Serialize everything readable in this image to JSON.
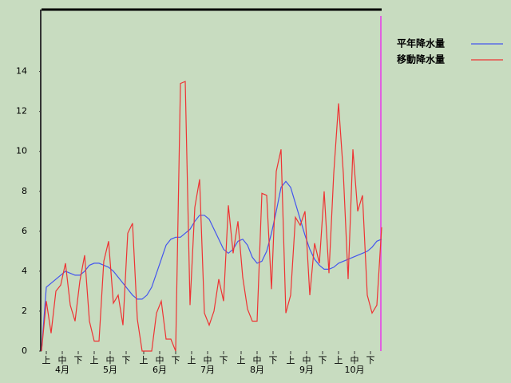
{
  "chart_data": {
    "type": "line",
    "xlim": [
      0,
      213
    ],
    "ylim": [
      0,
      17.1
    ],
    "yticks": [
      0,
      2,
      4,
      6,
      8,
      10,
      12,
      14
    ],
    "xticks": [
      {
        "value": 3,
        "label": "上"
      },
      {
        "value": 13,
        "label": "中"
      },
      {
        "value": 23,
        "label": "下"
      },
      {
        "value": 33,
        "label": "上"
      },
      {
        "value": 43,
        "label": "中"
      },
      {
        "value": 53,
        "label": "下"
      },
      {
        "value": 64,
        "label": "上"
      },
      {
        "value": 74,
        "label": "中"
      },
      {
        "value": 84,
        "label": "下"
      },
      {
        "value": 94,
        "label": "上"
      },
      {
        "value": 104,
        "label": "中"
      },
      {
        "value": 114,
        "label": "下"
      },
      {
        "value": 125,
        "label": "上"
      },
      {
        "value": 135,
        "label": "中"
      },
      {
        "value": 145,
        "label": "下"
      },
      {
        "value": 156,
        "label": "上"
      },
      {
        "value": 166,
        "label": "中"
      },
      {
        "value": 176,
        "label": "下"
      },
      {
        "value": 186,
        "label": "上"
      },
      {
        "value": 196,
        "label": "中"
      },
      {
        "value": 206,
        "label": "下"
      }
    ],
    "month_labels": [
      {
        "value": 13,
        "label": "4月"
      },
      {
        "value": 43,
        "label": "5月"
      },
      {
        "value": 74,
        "label": "6月"
      },
      {
        "value": 104,
        "label": "7月"
      },
      {
        "value": 135,
        "label": "8月"
      },
      {
        "value": 166,
        "label": "9月"
      },
      {
        "value": 196,
        "label": "10月"
      }
    ],
    "x": [
      0,
      3,
      6,
      9,
      12,
      15,
      18,
      21,
      24,
      27,
      30,
      33,
      36,
      39,
      42,
      45,
      48,
      51,
      54,
      57,
      60,
      63,
      66,
      69,
      72,
      75,
      78,
      81,
      84,
      87,
      90,
      93,
      96,
      99,
      102,
      105,
      108,
      111,
      114,
      117,
      120,
      123,
      126,
      129,
      132,
      135,
      138,
      141,
      144,
      147,
      150,
      153,
      156,
      159,
      162,
      165,
      168,
      171,
      174,
      177,
      180,
      183,
      186,
      189,
      192,
      195,
      198,
      201,
      204,
      207,
      210,
      213
    ],
    "series": [
      {
        "name": "平年降水量",
        "color": "#4455ee",
        "values": [
          0,
          3.2,
          3.4,
          3.6,
          3.8,
          4.0,
          3.9,
          3.8,
          3.8,
          4.0,
          4.3,
          4.4,
          4.4,
          4.3,
          4.2,
          4.0,
          3.7,
          3.4,
          3.1,
          2.8,
          2.6,
          2.6,
          2.8,
          3.2,
          3.9,
          4.6,
          5.3,
          5.6,
          5.7,
          5.7,
          5.9,
          6.1,
          6.5,
          6.8,
          6.8,
          6.6,
          6.1,
          5.6,
          5.1,
          4.9,
          5.1,
          5.5,
          5.6,
          5.3,
          4.7,
          4.4,
          4.5,
          5.0,
          5.9,
          7.0,
          8.2,
          8.5,
          8.2,
          7.4,
          6.6,
          5.8,
          5.1,
          4.6,
          4.3,
          4.1,
          4.1,
          4.2,
          4.4,
          4.5,
          4.6,
          4.7,
          4.8,
          4.9,
          5.0,
          5.2,
          5.5,
          5.6
        ]
      },
      {
        "name": "移動降水量",
        "color": "#ee3333",
        "values": [
          0,
          2.5,
          0.9,
          3.0,
          3.3,
          4.4,
          2.3,
          1.5,
          3.5,
          4.8,
          1.5,
          0.5,
          0.5,
          4.5,
          5.5,
          2.4,
          2.8,
          1.3,
          5.9,
          6.4,
          1.6,
          0,
          0,
          0,
          1.9,
          2.5,
          0.6,
          0.6,
          0,
          13.4,
          13.5,
          2.3,
          7.2,
          8.6,
          1.9,
          1.3,
          2.0,
          3.6,
          2.5,
          7.3,
          4.9,
          6.5,
          3.7,
          2.1,
          1.5,
          1.5,
          7.9,
          7.8,
          3.1,
          9.0,
          10.1,
          1.9,
          2.8,
          6.7,
          6.3,
          7.0,
          2.8,
          5.4,
          4.4,
          8.0,
          3.9,
          8.9,
          12.4,
          8.9,
          3.6,
          10.1,
          7.0,
          7.8,
          2.8,
          1.9,
          2.3,
          6.2
        ]
      }
    ]
  }
}
